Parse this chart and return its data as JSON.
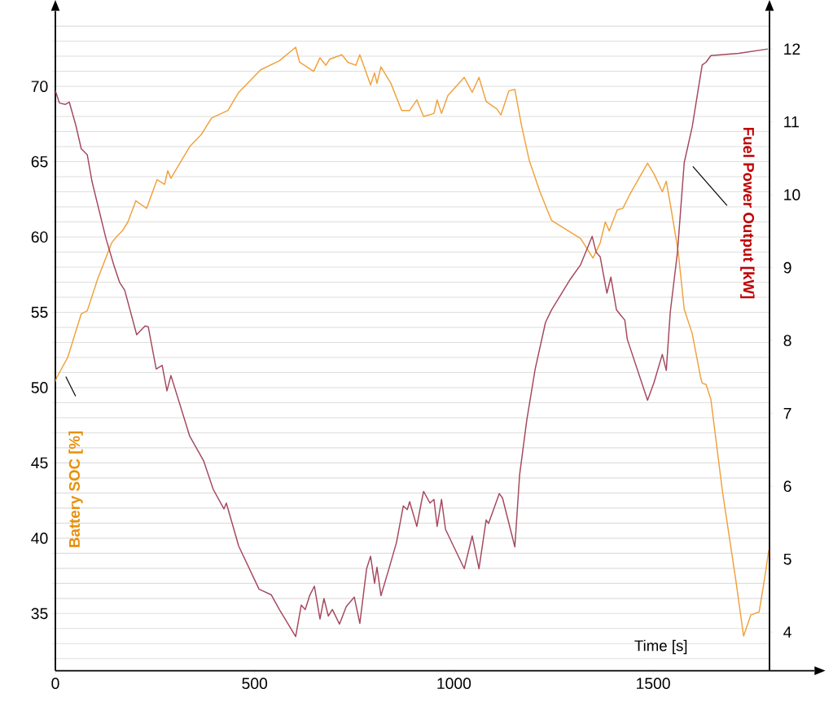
{
  "chart_data": {
    "type": "line",
    "xlabel": "Time [s]",
    "ylabel": "Battery SOC [%]",
    "y2label": "Fuel Power Output [kW]",
    "xlim": [
      0,
      1792
    ],
    "xticks": [
      0,
      500,
      1000,
      1500
    ],
    "ylim": [
      31.2,
      75
    ],
    "yticks": [
      {
        "value": 32,
        "label": null
      },
      {
        "value": 33,
        "label": null
      },
      {
        "value": 34,
        "label": null
      },
      35,
      {
        "value": 36,
        "label": null
      },
      {
        "value": 37,
        "label": null
      },
      {
        "value": 38,
        "label": null
      },
      {
        "value": 39,
        "label": null
      },
      40,
      {
        "value": 41,
        "label": null
      },
      {
        "value": 42,
        "label": null
      },
      {
        "value": 43,
        "label": null
      },
      {
        "value": 44,
        "label": null
      },
      45,
      {
        "value": 46,
        "label": null
      },
      {
        "value": 47,
        "label": null
      },
      {
        "value": 48,
        "label": null
      },
      {
        "value": 49,
        "label": null
      },
      50,
      {
        "value": 51,
        "label": null
      },
      {
        "value": 52,
        "label": null
      },
      {
        "value": 53,
        "label": null
      },
      {
        "value": 54,
        "label": null
      },
      55,
      {
        "value": 56,
        "label": null
      },
      {
        "value": 57,
        "label": null
      },
      {
        "value": 58,
        "label": null
      },
      {
        "value": 59,
        "label": null
      },
      60,
      {
        "value": 61,
        "label": null
      },
      {
        "value": 62,
        "label": null
      },
      {
        "value": 63,
        "label": null
      },
      {
        "value": 64,
        "label": null
      },
      65,
      {
        "value": 66,
        "label": null
      },
      {
        "value": 67,
        "label": null
      },
      {
        "value": 68,
        "label": null
      },
      {
        "value": 69,
        "label": null
      },
      70,
      {
        "value": 71,
        "label": null
      },
      {
        "value": 72,
        "label": null
      },
      {
        "value": 73,
        "label": null
      },
      {
        "value": 74,
        "label": null
      }
    ],
    "y2lim": [
      3.47,
      12.52
    ],
    "y2ticks": [
      4,
      5,
      6,
      7,
      8,
      9,
      10,
      11,
      12
    ],
    "grid": "y",
    "series": [
      {
        "color": "#f0a23c",
        "x": [
          0,
          4,
          31,
          65,
          80,
          106,
          141,
          153,
          168,
          182,
          202,
          229,
          255,
          274,
          282,
          290,
          337,
          366,
          392,
          433,
          460,
          515,
          562,
          603,
          613,
          648,
          664,
          679,
          688,
          719,
          734,
          754,
          764,
          791,
          801,
          807,
          817,
          842,
          869,
          889,
          907,
          924,
          950,
          958,
          969,
          985,
          1026,
          1046,
          1063,
          1081,
          1108,
          1118,
          1138,
          1153,
          1169,
          1189,
          1216,
          1245,
          1318,
          1349,
          1367,
          1380,
          1390,
          1410,
          1424,
          1441,
          1486,
          1502,
          1523,
          1533,
          1543,
          1563,
          1578,
          1598,
          1619,
          1623,
          1633,
          1645,
          1674,
          1707,
          1727,
          1745,
          1766,
          1782,
          1790
        ],
        "values": [
          50.4,
          50.7,
          52.0,
          54.9,
          55.1,
          57.2,
          59.6,
          60.0,
          60.4,
          61.0,
          62.4,
          61.9,
          63.8,
          63.5,
          64.4,
          63.9,
          66.0,
          66.8,
          67.9,
          68.4,
          69.6,
          71.1,
          71.7,
          72.6,
          71.6,
          71.0,
          71.9,
          71.4,
          71.8,
          72.1,
          71.6,
          71.4,
          72.1,
          70.1,
          70.9,
          70.2,
          71.3,
          70.2,
          68.4,
          68.4,
          69.1,
          68.0,
          68.2,
          69.1,
          68.2,
          69.4,
          70.6,
          69.6,
          70.6,
          69.0,
          68.5,
          68.1,
          69.7,
          69.8,
          67.5,
          65.1,
          63.0,
          61.1,
          59.9,
          58.6,
          59.6,
          61.0,
          60.4,
          61.8,
          61.9,
          62.8,
          64.9,
          64.2,
          63.0,
          63.7,
          62.2,
          59.0,
          55.2,
          53.6,
          50.7,
          50.3,
          50.2,
          49.2,
          43.1,
          37.3,
          33.5,
          34.9,
          35.1,
          37.7,
          39.2
        ]
      },
      {
        "color": "#a5485e",
        "axis": "y2",
        "x": [
          0,
          10,
          25,
          35,
          51,
          65,
          80,
          92,
          127,
          147,
          161,
          174,
          204,
          225,
          233,
          253,
          268,
          280,
          290,
          337,
          372,
          396,
          423,
          429,
          460,
          511,
          542,
          562,
          603,
          617,
          627,
          638,
          650,
          664,
          674,
          685,
          695,
          713,
          730,
          750,
          764,
          781,
          791,
          801,
          807,
          817,
          836,
          856,
          873,
          883,
          889,
          907,
          918,
          924,
          940,
          950,
          958,
          969,
          979,
          1026,
          1046,
          1063,
          1081,
          1087,
          1114,
          1122,
          1153,
          1165,
          1183,
          1204,
          1230,
          1245,
          1292,
          1318,
          1347,
          1357,
          1367,
          1384,
          1394,
          1408,
          1429,
          1435,
          1486,
          1502,
          1523,
          1533,
          1543,
          1561,
          1578,
          1598,
          1623,
          1633,
          1645,
          1715,
          1788
        ],
        "values": [
          11.43,
          11.26,
          11.24,
          11.27,
          10.96,
          10.63,
          10.55,
          10.18,
          9.4,
          9.03,
          8.8,
          8.69,
          8.08,
          8.2,
          8.19,
          7.61,
          7.66,
          7.31,
          7.52,
          6.69,
          6.35,
          5.96,
          5.69,
          5.77,
          5.18,
          4.59,
          4.51,
          4.31,
          3.94,
          4.37,
          4.31,
          4.5,
          4.63,
          4.18,
          4.46,
          4.22,
          4.31,
          4.11,
          4.35,
          4.48,
          4.12,
          4.87,
          5.04,
          4.67,
          4.89,
          4.5,
          4.85,
          5.23,
          5.73,
          5.68,
          5.79,
          5.45,
          5.77,
          5.93,
          5.77,
          5.82,
          5.45,
          5.82,
          5.41,
          4.87,
          5.32,
          4.87,
          5.54,
          5.49,
          5.9,
          5.84,
          5.17,
          6.16,
          6.91,
          7.61,
          8.25,
          8.42,
          8.84,
          9.04,
          9.43,
          9.21,
          9.15,
          8.65,
          8.87,
          8.42,
          8.28,
          8.02,
          7.18,
          7.42,
          7.81,
          7.59,
          8.39,
          9.21,
          10.44,
          10.93,
          11.78,
          11.82,
          11.91,
          11.94,
          12.0
        ]
      }
    ]
  }
}
